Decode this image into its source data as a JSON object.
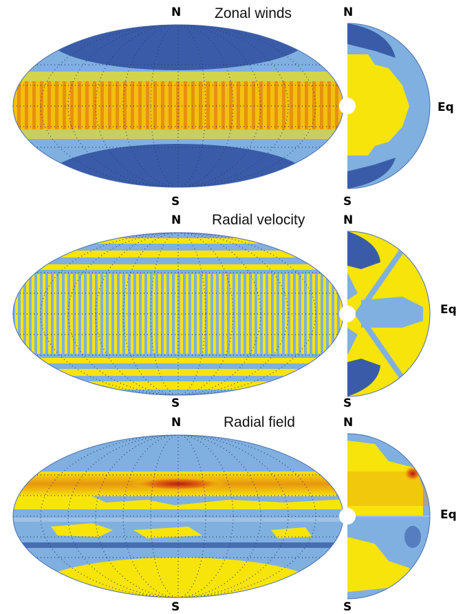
{
  "panels": [
    {
      "title": "Zonal  winds",
      "map_north": "N",
      "map_south": "S",
      "section_north": "N",
      "section_south": "S",
      "equator": "Eq"
    },
    {
      "title": "Radial velocity",
      "map_north": "N",
      "map_south": "S",
      "section_north": "N",
      "section_south": "S",
      "equator": "Eq"
    },
    {
      "title": "Radial field",
      "map_north": "N",
      "map_south": "S",
      "section_north": "N",
      "section_south": "S",
      "equator": "Eq"
    }
  ],
  "colors": {
    "dark_blue": "#2f4f9e",
    "light_blue": "#7fb0e0",
    "yellow": "#f7e40a",
    "orange": "#e89510",
    "red": "#b61a12",
    "grid": "#2a3a6a"
  }
}
